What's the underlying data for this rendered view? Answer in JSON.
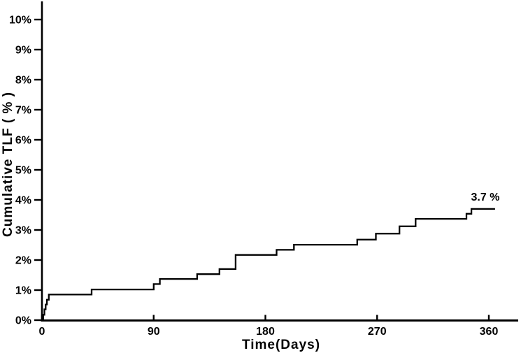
{
  "chart_data": {
    "type": "line",
    "subtype": "step_post",
    "title": "",
    "xlabel": "Time(Days)",
    "ylabel": "Cumulative TLF ( % )",
    "grid": false,
    "legend_position": "none",
    "background_color": "#ffffff",
    "line_color": "#000000",
    "axis_color": "#000000",
    "xlim": [
      0,
      384
    ],
    "ylim": [
      0,
      10.6
    ],
    "x_ticks": [
      {
        "value": 0,
        "label": "0"
      },
      {
        "value": 90,
        "label": "90"
      },
      {
        "value": 180,
        "label": "180"
      },
      {
        "value": 270,
        "label": "270"
      },
      {
        "value": 360,
        "label": "360"
      }
    ],
    "y_ticks": [
      {
        "value": 0,
        "label": "0%"
      },
      {
        "value": 1,
        "label": "1%"
      },
      {
        "value": 2,
        "label": "2%"
      },
      {
        "value": 3,
        "label": "3%"
      },
      {
        "value": 4,
        "label": "4%"
      },
      {
        "value": 5,
        "label": "5%"
      },
      {
        "value": 6,
        "label": "6%"
      },
      {
        "value": 7,
        "label": "7%"
      },
      {
        "value": 8,
        "label": "8%"
      },
      {
        "value": 9,
        "label": "9%"
      },
      {
        "value": 10,
        "label": "10%"
      }
    ],
    "annotation": {
      "text": "3.7 %",
      "day": 346,
      "pct": 3.7
    },
    "series": [
      {
        "name": "Cumulative TLF",
        "color": "#000000",
        "steps": [
          [
            0,
            0
          ],
          [
            1,
            0.18
          ],
          [
            2,
            0.36
          ],
          [
            3,
            0.52
          ],
          [
            4,
            0.68
          ],
          [
            5.5,
            0.85
          ],
          [
            40,
            1.02
          ],
          [
            90,
            1.2
          ],
          [
            95,
            1.37
          ],
          [
            125,
            1.53
          ],
          [
            143,
            1.7
          ],
          [
            156,
            2.17
          ],
          [
            189,
            2.34
          ],
          [
            203,
            2.51
          ],
          [
            254,
            2.68
          ],
          [
            269,
            2.88
          ],
          [
            288,
            3.12
          ],
          [
            301,
            3.37
          ],
          [
            342,
            3.54
          ],
          [
            346,
            3.7
          ],
          [
            365,
            3.7
          ]
        ]
      }
    ]
  }
}
